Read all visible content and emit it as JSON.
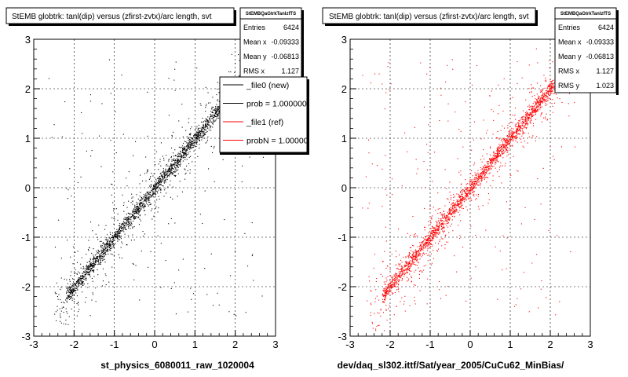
{
  "colors": {
    "left_points": "#000000",
    "right_points": "#ff0000",
    "legend_new": "#000000",
    "legend_ref": "#ff0000"
  },
  "chart_data": [
    {
      "type": "scatter",
      "title": "StEMB globtrk: tanl(dip) versus (zfirst-zvtx)/arc length, svt",
      "xlabel": "st_physics_6080011_raw_1020004",
      "ylabel": "",
      "xlim": [
        -3,
        3
      ],
      "ylim": [
        -3,
        3
      ],
      "xticks": [
        "-3",
        "-2",
        "-1",
        "0",
        "1",
        "2",
        "3"
      ],
      "yticks": [
        "-3",
        "-2",
        "-1",
        "0",
        "1",
        "2",
        "3"
      ],
      "grid": true,
      "trend": {
        "x": [
          -2.2,
          2.2
        ],
        "y": [
          -2.2,
          2.2
        ]
      },
      "point_color": "#000000",
      "stats": {
        "name": "StEMBQaGtrkTanlzfTS",
        "rows": [
          {
            "label": "Entries",
            "value": "6424"
          },
          {
            "label": "Mean x",
            "value": "-0.09333"
          },
          {
            "label": "Mean y",
            "value": "-0.06813"
          },
          {
            "label": "RMS x",
            "value": "1.127"
          }
        ]
      },
      "legend": [
        {
          "label": "_file0 (new)",
          "color": "#000000"
        },
        {
          "label": "prob = 1.000000",
          "color": "#000000"
        },
        {
          "label": "_file1 (ref)",
          "color": "#ff0000"
        },
        {
          "label": "probN = 1.000000",
          "color": "#ff0000"
        }
      ]
    },
    {
      "type": "scatter",
      "title": "StEMB globtrk: tanl(dip) versus (zfirst-zvtx)/arc length, svt",
      "xlabel": "dev/daq_sl302.ittf/Sat/year_2005/CuCu62_MinBias/",
      "ylabel": "",
      "xlim": [
        -3,
        3
      ],
      "ylim": [
        -3,
        3
      ],
      "xticks": [
        "-3",
        "-2",
        "-1",
        "0",
        "1",
        "2",
        "3"
      ],
      "yticks": [
        "-3",
        "-2",
        "-1",
        "0",
        "1",
        "2",
        "3"
      ],
      "grid": true,
      "trend": {
        "x": [
          -2.2,
          2.2
        ],
        "y": [
          -2.2,
          2.2
        ]
      },
      "point_color": "#ff0000",
      "stats": {
        "name": "StEMBQaGtrkTanlzfTS",
        "rows": [
          {
            "label": "Entries",
            "value": "6424"
          },
          {
            "label": "Mean x",
            "value": "-0.09333"
          },
          {
            "label": "Mean y",
            "value": "-0.06813"
          },
          {
            "label": "RMS x",
            "value": "1.127"
          },
          {
            "label": "RMS y",
            "value": "1.023"
          }
        ]
      }
    }
  ]
}
